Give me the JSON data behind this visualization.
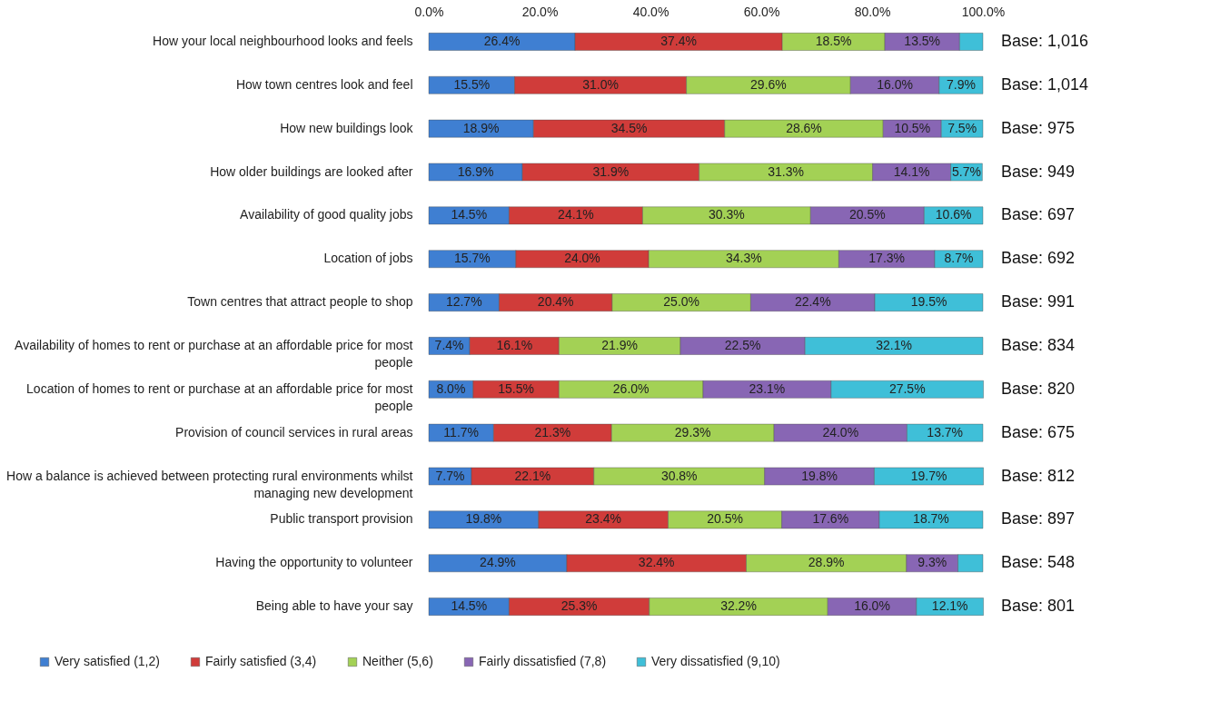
{
  "chart_data": {
    "type": "bar",
    "orientation": "horizontal",
    "stacked": true,
    "categories": [
      "How your local neighbourhood looks and feels",
      "How town centres look and feel",
      "How new buildings look",
      "How older buildings are looked after",
      "Availability of good quality jobs",
      "Location of jobs",
      "Town centres that attract people to shop",
      "Availability of homes to rent or purchase at an affordable price for most people",
      "Location of homes to rent or purchase at an affordable price for most people",
      "Provision of council services in rural areas",
      "How a balance is achieved between protecting rural environments whilst managing new development",
      "Public transport provision",
      "Having the opportunity to volunteer",
      "Being able to have your say"
    ],
    "series": [
      {
        "name": "Very satisfied  (1,2)",
        "color": "#3f7fd2",
        "values": [
          26.4,
          15.5,
          18.9,
          16.9,
          14.5,
          15.7,
          12.7,
          7.4,
          8.0,
          11.7,
          7.7,
          19.8,
          24.9,
          14.5
        ],
        "value_labels": [
          "26.4%",
          "15.5%",
          "18.9%",
          "16.9%",
          "14.5%",
          "15.7%",
          "12.7%",
          "7.4%",
          "8.0%",
          "11.7%",
          "7.7%",
          "19.8%",
          "24.9%",
          "14.5%"
        ]
      },
      {
        "name": "Fairly satisfied  (3,4)",
        "color": "#d03c3a",
        "values": [
          37.4,
          31.0,
          34.5,
          31.9,
          24.1,
          24.0,
          20.4,
          16.1,
          15.5,
          21.3,
          22.1,
          23.4,
          32.4,
          25.3
        ],
        "value_labels": [
          "37.4%",
          "31.0%",
          "34.5%",
          "31.9%",
          "24.1%",
          "24.0%",
          "20.4%",
          "16.1%",
          "15.5%",
          "21.3%",
          "22.1%",
          "23.4%",
          "32.4%",
          "25.3%"
        ]
      },
      {
        "name": "Neither  (5,6)",
        "color": "#a3d155",
        "values": [
          18.5,
          29.6,
          28.6,
          31.3,
          30.3,
          34.3,
          25.0,
          21.9,
          26.0,
          29.3,
          30.8,
          20.5,
          28.9,
          32.2
        ],
        "value_labels": [
          "18.5%",
          "29.6%",
          "28.6%",
          "31.3%",
          "30.3%",
          "34.3%",
          "25.0%",
          "21.9%",
          "26.0%",
          "29.3%",
          "30.8%",
          "20.5%",
          "28.9%",
          "32.2%"
        ]
      },
      {
        "name": "Fairly dissatisfied  (7,8)",
        "color": "#8866b4",
        "values": [
          13.5,
          16.0,
          10.5,
          14.1,
          20.5,
          17.3,
          22.4,
          22.5,
          23.1,
          24.0,
          19.8,
          17.6,
          9.3,
          16.0
        ],
        "value_labels": [
          "13.5%",
          "16.0%",
          "10.5%",
          "14.1%",
          "20.5%",
          "17.3%",
          "22.4%",
          "22.5%",
          "23.1%",
          "24.0%",
          "19.8%",
          "17.6%",
          "9.3%",
          "16.0%"
        ]
      },
      {
        "name": "Very dissatisfied  (9,10)",
        "color": "#3fbfd8",
        "values": [
          4.2,
          7.9,
          7.5,
          5.7,
          10.6,
          8.7,
          19.5,
          32.1,
          27.5,
          13.7,
          19.7,
          18.7,
          4.5,
          12.1
        ],
        "value_labels": [
          null,
          "7.9%",
          "7.5%",
          "5.7%",
          "10.6%",
          "8.7%",
          "19.5%",
          "32.1%",
          "27.5%",
          "13.7%",
          "19.7%",
          "18.7%",
          null,
          "12.1%"
        ]
      }
    ],
    "xlim": [
      0,
      100
    ],
    "xticks": [
      {
        "value": 0,
        "label": "0.0%"
      },
      {
        "value": 20,
        "label": "20.0%"
      },
      {
        "value": 40,
        "label": "40.0%"
      },
      {
        "value": 60,
        "label": "60.0%"
      },
      {
        "value": 80,
        "label": "80.0%"
      },
      {
        "value": 100,
        "label": "100.0%"
      }
    ],
    "grid": false,
    "legend": "bottom",
    "annotations": [
      "Base: 1,016",
      "Base: 1,014",
      "Base: 975",
      "Base: 949",
      "Base: 697",
      "Base: 692",
      "Base: 991",
      "Base: 834",
      "Base: 820",
      "Base: 675",
      "Base: 812",
      "Base: 897",
      "Base: 548",
      "Base: 801"
    ]
  }
}
